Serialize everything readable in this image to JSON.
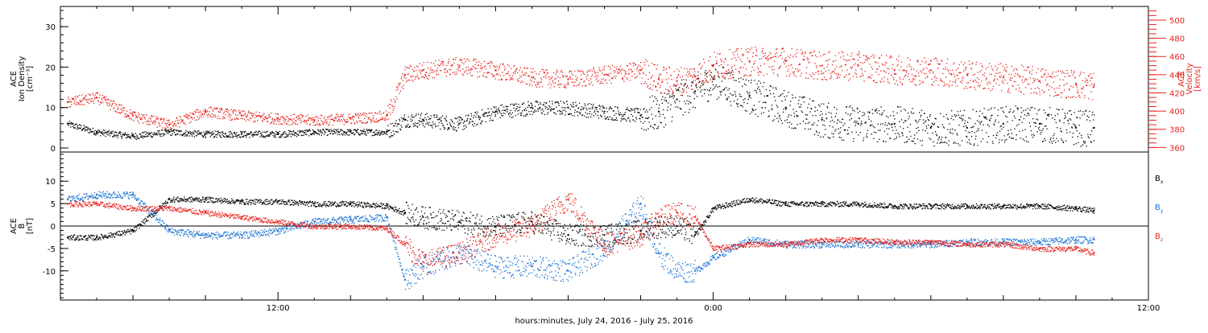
{
  "figure": {
    "xlabel": "hours:minutes, July 24, 2016 – July 25, 2016",
    "x_tick_labels": [
      "12:00",
      "0:00",
      "12:00"
    ],
    "colors": {
      "black": "#000000",
      "red": "#e8221c",
      "blue": "#1a72d2"
    }
  },
  "chart_data": [
    {
      "type": "scatter",
      "panel": "top",
      "ylabel_left": [
        "ACE",
        "Ion Density",
        "[cm⁻³]"
      ],
      "ylabel_right": [
        "ACE",
        "Velocity",
        "[km/s]"
      ],
      "x_units": "hours since 2016-07-24 00:00 UT",
      "xlim": [
        6,
        36
      ],
      "ylim_left": [
        -1,
        35
      ],
      "ylim_right": [
        355,
        515
      ],
      "left_ticks": [
        0,
        10,
        20,
        30
      ],
      "right_ticks": [
        360,
        380,
        400,
        420,
        440,
        460,
        480,
        500
      ],
      "series": [
        {
          "axis": "left",
          "color": "#000000",
          "x": [
            6.2,
            7,
            8,
            9,
            10,
            11,
            12,
            13,
            14,
            15,
            15.5,
            16,
            17,
            18,
            19,
            20,
            21,
            22,
            22.5,
            23,
            23.5,
            24,
            25,
            26,
            27,
            28,
            29,
            30,
            31,
            32,
            33,
            34,
            34.5
          ],
          "values": [
            6,
            4,
            3,
            4,
            3.5,
            3.5,
            3.5,
            4,
            4,
            4,
            7,
            7,
            6,
            9,
            10,
            10,
            9,
            8,
            9,
            12,
            14,
            17,
            13,
            10,
            7,
            6,
            6,
            5,
            5,
            6,
            6,
            5,
            5
          ]
        },
        {
          "axis": "right",
          "color": "#e8221c",
          "x": [
            6.2,
            7,
            8,
            9,
            10,
            11,
            12,
            13,
            14,
            15,
            15.5,
            16,
            17,
            18,
            19,
            20,
            21,
            22,
            22.5,
            23,
            23.5,
            24,
            25,
            26,
            27,
            28,
            29,
            30,
            31,
            32,
            33,
            34,
            34.5
          ],
          "values": [
            410,
            415,
            395,
            385,
            400,
            395,
            392,
            390,
            392,
            395,
            440,
            445,
            450,
            445,
            437,
            435,
            440,
            445,
            435,
            433,
            438,
            450,
            455,
            455,
            450,
            450,
            445,
            445,
            440,
            437,
            433,
            430,
            428
          ]
        }
      ]
    },
    {
      "type": "scatter",
      "panel": "bottom",
      "ylabel_left": [
        "ACE",
        "B",
        "[nT]"
      ],
      "x_units": "hours since 2016-07-24 00:00 UT",
      "xlim": [
        6,
        36
      ],
      "ylim": [
        -16.5,
        16.5
      ],
      "y_ticks": [
        -10,
        -5,
        0,
        5,
        10
      ],
      "legend_position": "right",
      "series": [
        {
          "name": "Bx",
          "color": "#000000",
          "x": [
            6.2,
            7,
            8,
            9,
            10,
            11,
            12,
            13,
            14,
            15,
            15.5,
            16,
            17,
            18,
            19,
            20,
            21,
            22,
            22.5,
            23,
            23.5,
            24,
            25,
            26,
            27,
            28,
            29,
            30,
            31,
            32,
            33,
            34,
            34.5
          ],
          "values": [
            -2.5,
            -2.5,
            -1,
            6,
            6,
            5.5,
            5.5,
            5,
            5,
            4.5,
            3,
            2,
            1,
            0,
            1,
            -2,
            -2,
            -1,
            0,
            0,
            -2,
            4,
            6,
            5,
            5,
            5,
            4.5,
            4.5,
            4.5,
            4.5,
            4.5,
            4,
            3.5
          ]
        },
        {
          "name": "By",
          "color": "#1a72d2",
          "x": [
            6.2,
            7,
            8,
            9,
            10,
            11,
            12,
            13,
            14,
            15,
            15.5,
            16,
            17,
            18,
            19,
            20,
            21,
            22,
            22.5,
            23,
            23.5,
            24,
            25,
            26,
            27,
            28,
            29,
            30,
            31,
            32,
            33,
            34,
            34.5
          ],
          "values": [
            6,
            7,
            7,
            -1,
            -2,
            -2,
            -1,
            1,
            1.5,
            2,
            -12,
            -9,
            -6,
            -9,
            -9,
            -10,
            -5,
            5,
            -6,
            -10,
            -10,
            -7,
            -3,
            -4,
            -4,
            -4,
            -4,
            -4,
            -3.5,
            -3.5,
            -3.5,
            -3,
            -3
          ]
        },
        {
          "name": "Bz",
          "color": "#e8221c",
          "x": [
            6.2,
            7,
            8,
            9,
            10,
            11,
            12,
            13,
            14,
            15,
            15.5,
            16,
            17,
            18,
            19,
            20,
            21,
            22,
            22.5,
            23,
            23.5,
            24,
            25,
            26,
            27,
            28,
            29,
            30,
            31,
            32,
            33,
            34,
            34.5
          ],
          "values": [
            5,
            5,
            4,
            4,
            3,
            2,
            1,
            0,
            0,
            -0.5,
            -4,
            -8,
            -6,
            -2,
            0,
            6,
            -4,
            -2,
            2,
            3,
            2,
            -5,
            -4,
            -4,
            -3,
            -3,
            -3.5,
            -3.5,
            -4,
            -4,
            -5,
            -5,
            -6
          ]
        }
      ]
    }
  ]
}
